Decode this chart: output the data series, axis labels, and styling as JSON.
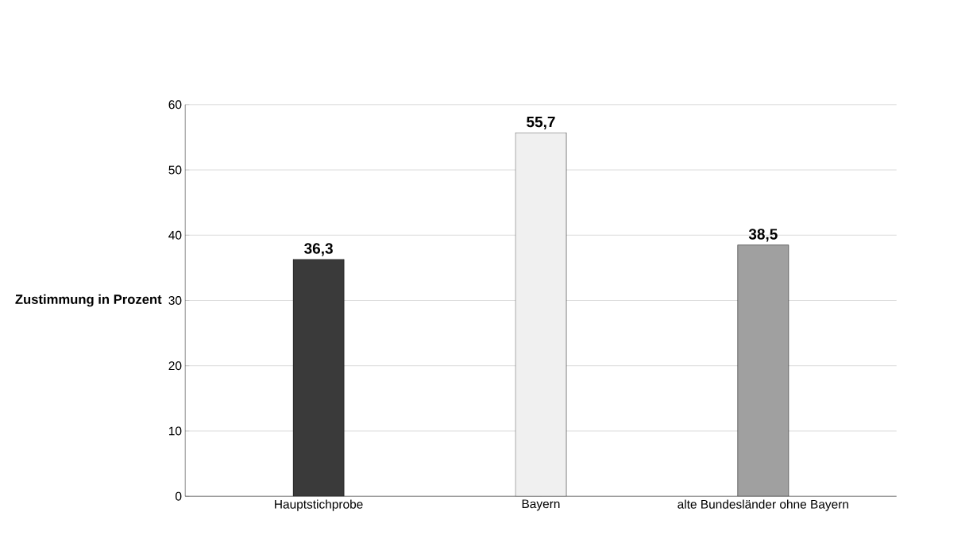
{
  "chart_data": {
    "type": "bar",
    "ylabel": "Zustimmung in Prozent",
    "categories": [
      "Hauptstichprobe",
      "Bayern",
      "alte Bundesländer ohne Bayern"
    ],
    "values": [
      36.3,
      55.7,
      38.5
    ],
    "value_labels": [
      "36,3",
      "55,7",
      "38,5"
    ],
    "colors": [
      "#3a3a3a",
      "#f0f0f0",
      "#a0a0a0"
    ],
    "ylim": [
      0,
      60
    ],
    "yticks": [
      0,
      10,
      20,
      30,
      40,
      50,
      60
    ],
    "grid": "y"
  }
}
